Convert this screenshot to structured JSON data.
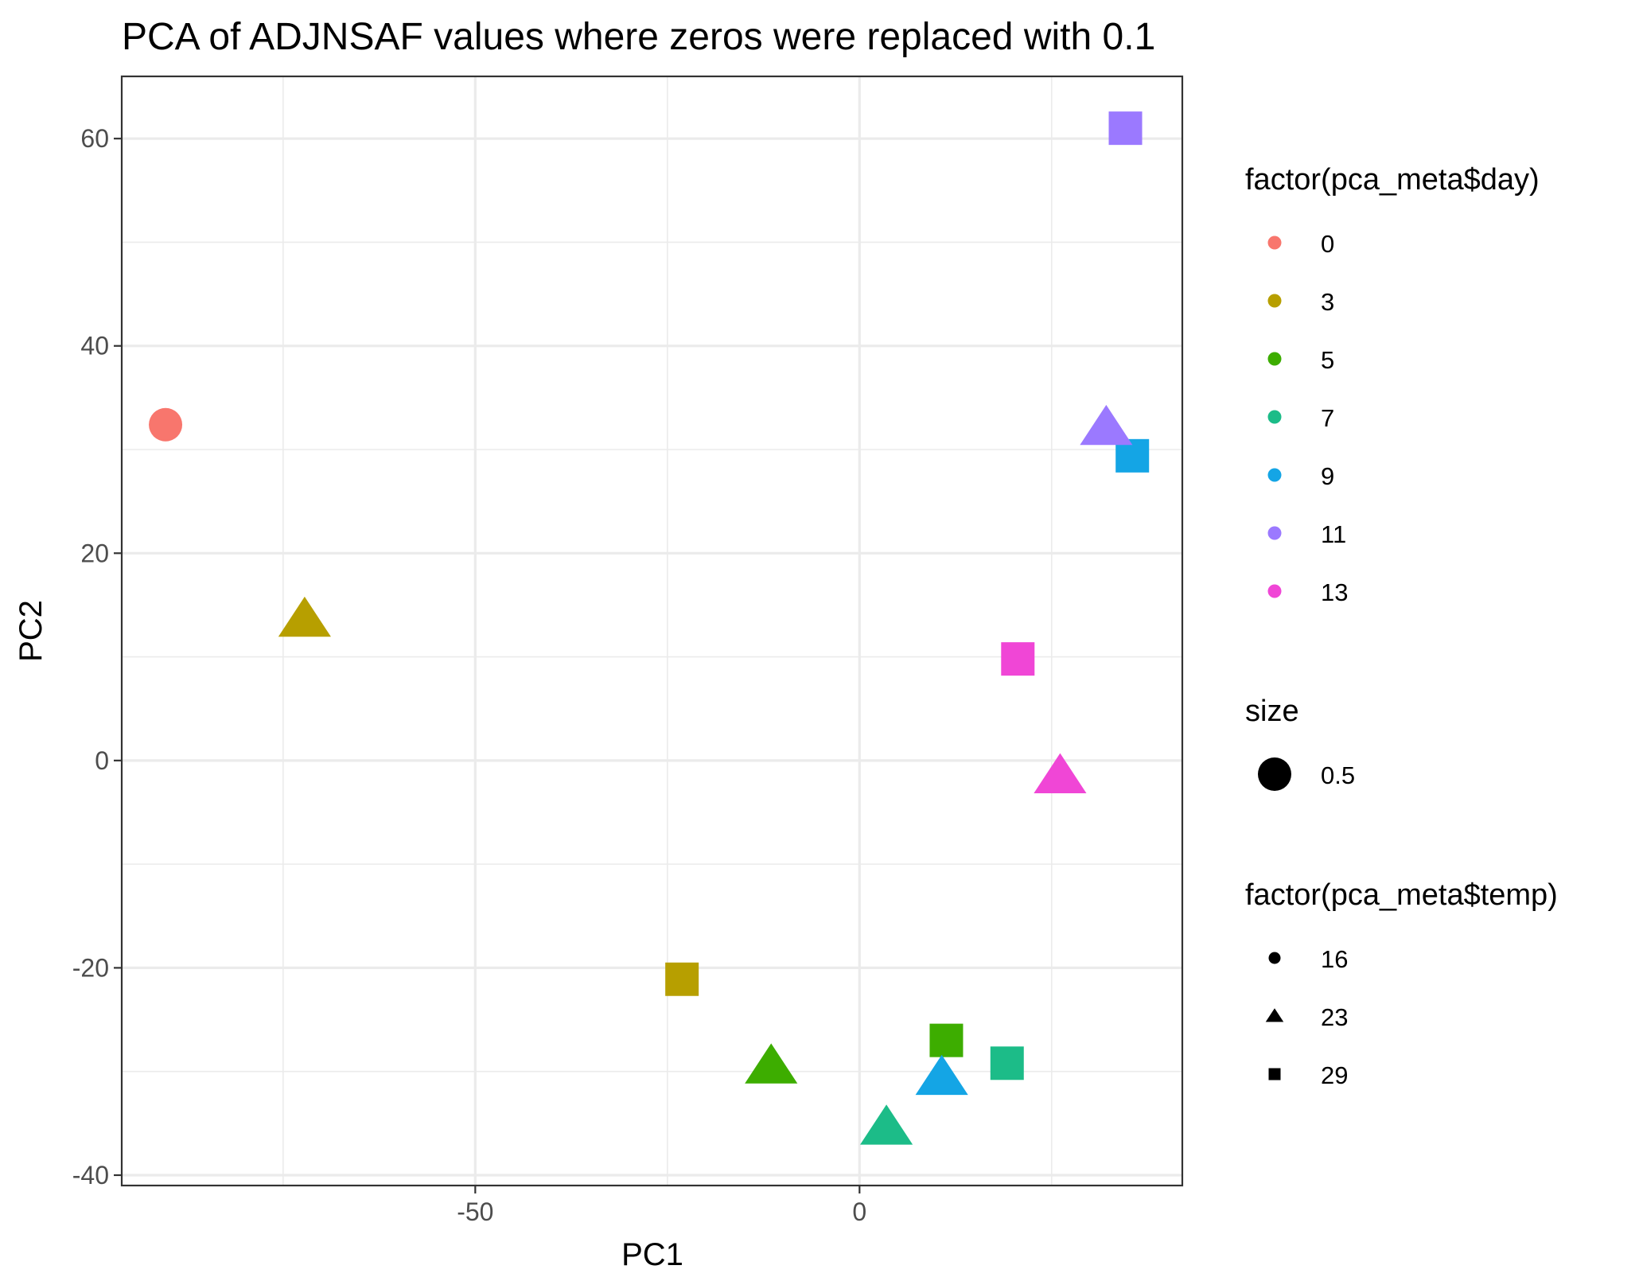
{
  "chart_data": {
    "type": "scatter",
    "title": "PCA of ADJNSAF values where zeros were replaced with 0.1",
    "xlabel": "PC1",
    "ylabel": "PC2",
    "xlim": [
      -96,
      42
    ],
    "ylim": [
      -41,
      66
    ],
    "x_ticks": [
      -50,
      0
    ],
    "y_ticks": [
      -40,
      -20,
      0,
      20,
      40,
      60
    ],
    "grid": true,
    "legend_position": "right",
    "legends": [
      {
        "title": "factor(pca_meta$day)",
        "kind": "color",
        "items": [
          {
            "label": "0",
            "color": "#F8766D"
          },
          {
            "label": "3",
            "color": "#B79F00"
          },
          {
            "label": "5",
            "color": "#3DAD00"
          },
          {
            "label": "7",
            "color": "#1CBC88"
          },
          {
            "label": "9",
            "color": "#14A5E5"
          },
          {
            "label": "11",
            "color": "#9B79FF"
          },
          {
            "label": "13",
            "color": "#F046D6"
          }
        ]
      },
      {
        "title": "size",
        "kind": "size",
        "items": [
          {
            "label": "0.5",
            "shape": "circle"
          }
        ]
      },
      {
        "title": "factor(pca_meta$temp)",
        "kind": "shape",
        "items": [
          {
            "label": "16",
            "shape": "circle"
          },
          {
            "label": "23",
            "shape": "triangle"
          },
          {
            "label": "29",
            "shape": "square"
          }
        ]
      }
    ],
    "points": [
      {
        "x": -90.3,
        "y": 32.4,
        "day": "0",
        "temp": "16"
      },
      {
        "x": -72.2,
        "y": 13.6,
        "day": "3",
        "temp": "23"
      },
      {
        "x": -23.1,
        "y": -21.1,
        "day": "3",
        "temp": "29"
      },
      {
        "x": -11.5,
        "y": -29.5,
        "day": "5",
        "temp": "23"
      },
      {
        "x": 11.3,
        "y": -27.0,
        "day": "5",
        "temp": "29"
      },
      {
        "x": 3.5,
        "y": -35.4,
        "day": "7",
        "temp": "23"
      },
      {
        "x": 19.2,
        "y": -29.2,
        "day": "7",
        "temp": "29"
      },
      {
        "x": 10.7,
        "y": -30.6,
        "day": "9",
        "temp": "23"
      },
      {
        "x": 35.5,
        "y": 29.4,
        "day": "9",
        "temp": "29"
      },
      {
        "x": 32.1,
        "y": 32.1,
        "day": "11",
        "temp": "23"
      },
      {
        "x": 34.6,
        "y": 61.0,
        "day": "11",
        "temp": "29"
      },
      {
        "x": 20.6,
        "y": 9.8,
        "day": "13",
        "temp": "29"
      },
      {
        "x": 26.1,
        "y": -1.5,
        "day": "13",
        "temp": "23"
      }
    ]
  }
}
